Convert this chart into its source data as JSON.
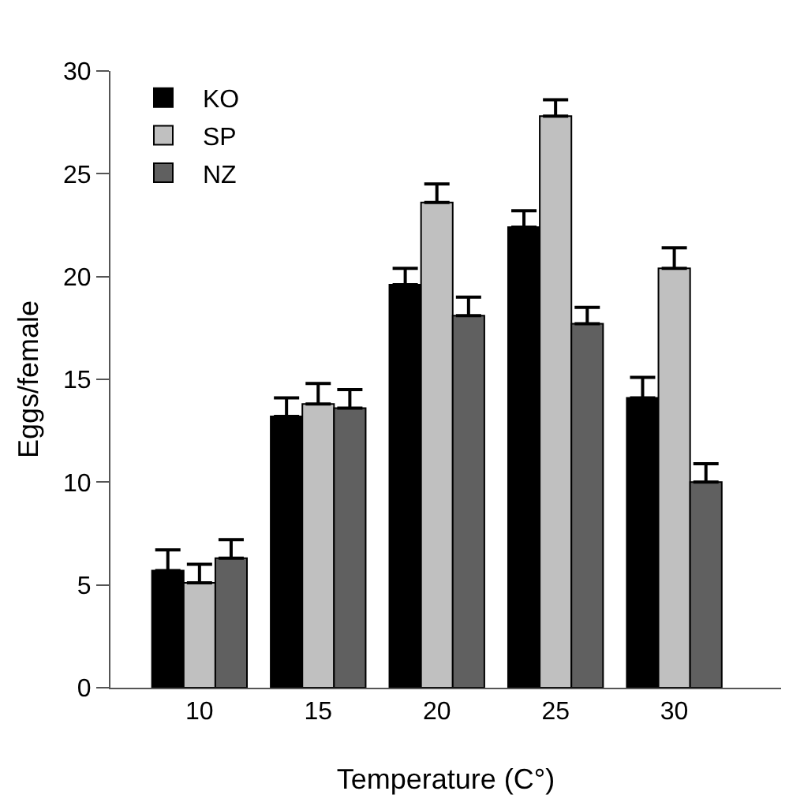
{
  "chart_data": {
    "type": "bar",
    "xlabel": "Temperature (C°)",
    "ylabel": "Eggs/female",
    "categories": [
      "10",
      "15",
      "20",
      "25",
      "30"
    ],
    "series": [
      {
        "name": "KO",
        "color": "#000000",
        "values": [
          5.7,
          13.2,
          19.6,
          22.4,
          14.1
        ],
        "errors": [
          [
            5.7,
            6.7
          ],
          [
            13.2,
            14.1
          ],
          [
            19.6,
            20.4
          ],
          [
            22.4,
            23.2
          ],
          [
            14.1,
            15.1
          ]
        ]
      },
      {
        "name": "SP",
        "color": "#c0c0c0",
        "values": [
          5.1,
          13.8,
          23.6,
          27.8,
          20.4
        ],
        "errors": [
          [
            5.1,
            6.0
          ],
          [
            13.8,
            14.8
          ],
          [
            23.6,
            24.5
          ],
          [
            27.8,
            28.6
          ],
          [
            20.4,
            21.4
          ]
        ]
      },
      {
        "name": "NZ",
        "color": "#606060",
        "values": [
          6.3,
          13.6,
          18.1,
          17.7,
          10.0
        ],
        "errors": [
          [
            6.3,
            7.2
          ],
          [
            13.6,
            14.5
          ],
          [
            18.1,
            19.0
          ],
          [
            17.7,
            18.5
          ],
          [
            10.0,
            10.9
          ]
        ]
      }
    ],
    "ylim": [
      0,
      30
    ],
    "yticks": [
      0,
      5,
      10,
      15,
      20,
      25,
      30
    ],
    "grid": false,
    "legend": "top left"
  }
}
